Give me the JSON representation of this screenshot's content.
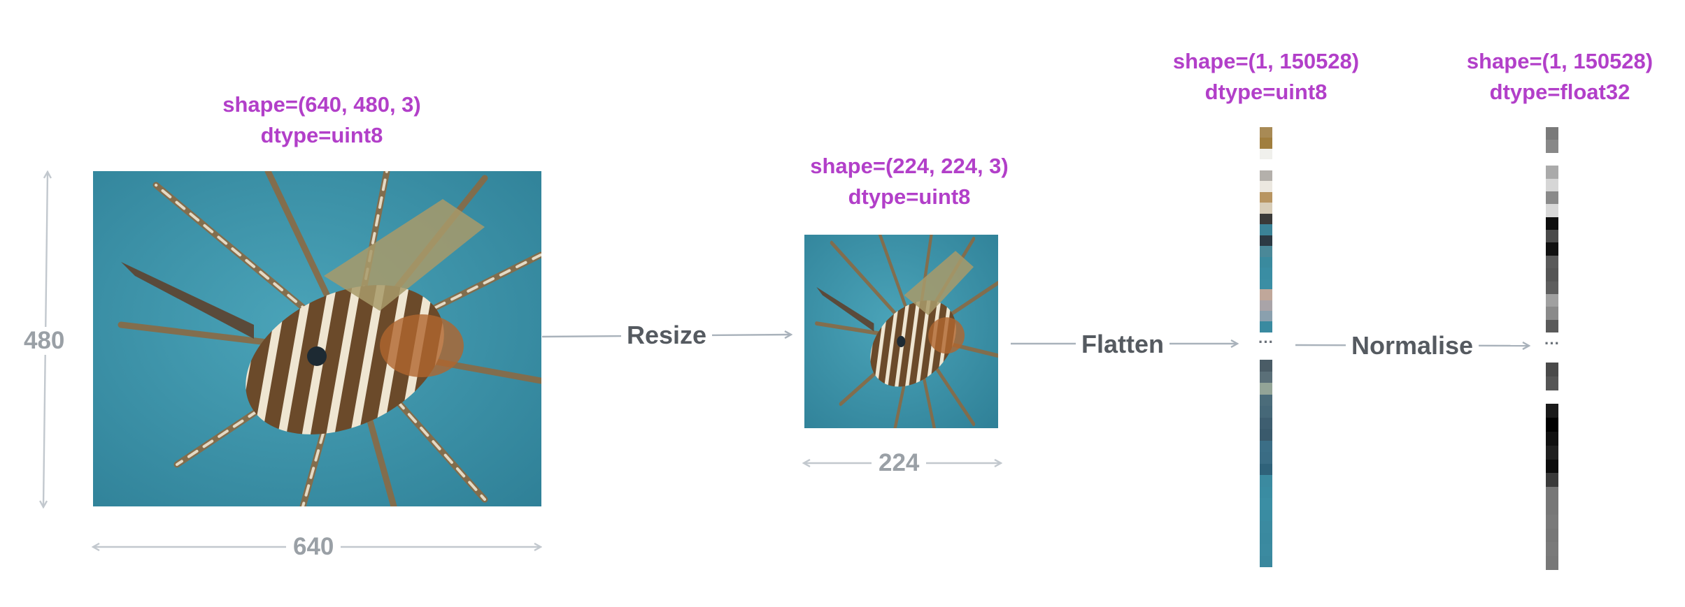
{
  "stages": {
    "original": {
      "shape": "shape=(640, 480, 3)",
      "dtype": "dtype=uint8",
      "width_label": "640",
      "height_label": "480"
    },
    "resized": {
      "shape": "shape=(224, 224, 3)",
      "dtype": "dtype=uint8",
      "width_label": "224"
    },
    "flattened": {
      "shape": "shape=(1, 150528)",
      "dtype": "dtype=uint8",
      "ellipsis": "···"
    },
    "normalised": {
      "shape": "shape=(1, 150528)",
      "dtype": "dtype=float32",
      "ellipsis": "···"
    }
  },
  "steps": {
    "resize": "Resize",
    "flatten": "Flatten",
    "normalise": "Normalise"
  },
  "colors": {
    "label": "#b23fc9",
    "step_text": "#555a60",
    "dimension": "#9aa0a6",
    "arrow": "#a9b2bb",
    "water": "#3a8fa6"
  },
  "strips": {
    "color_top": [
      "#a88a55",
      "#a07e3e",
      "#f0f0ec",
      "#ffffff",
      "#b4b0ab",
      "#ece8e0",
      "#b89561",
      "#d8cdb8",
      "#3a3a38",
      "#3b8397",
      "#2c3a44",
      "#4a8898",
      "#3a8a9e",
      "#3a8da3",
      "#3b8ea4",
      "#c0a79a",
      "#a9a4a8",
      "#8aa0ae",
      "#3a8aa0"
    ],
    "color_bottom": [
      "#4a5c66",
      "#5a6f78",
      "#93a497",
      "#4b6c7a",
      "#466878",
      "#3e5e70",
      "#3a5a6c",
      "#3b6e86",
      "#3a6c84",
      "#2f627a",
      "#3b8aa0",
      "#3a8ca2",
      "#3b8ea4",
      "#3a8ca2",
      "#3b8aa0",
      "#3a899f",
      "#3b8aa0",
      "#3a889e"
    ],
    "gray_top": [
      "#7a7a7a",
      "#888888",
      "#ffffff",
      "#aaaaaa",
      "#d6d6d6",
      "#8a8a8a",
      "#d8d8d8",
      "#0e0e0e",
      "#4a4a4a",
      "#111111",
      "#5a5a5a",
      "#555555",
      "#5e5e5e",
      "#a0a0a0",
      "#8a8a8a",
      "#5a5a5a"
    ],
    "gray_bottom": [
      "#4a4a4a",
      "#555555",
      "#ffffff",
      "#1a1a1a",
      "#000000",
      "#111111",
      "#202020",
      "#0d0d0d",
      "#3a3a3a",
      "#777777",
      "#777777",
      "#7a7a7a",
      "#777777",
      "#7a7a7a",
      "#787878"
    ]
  }
}
